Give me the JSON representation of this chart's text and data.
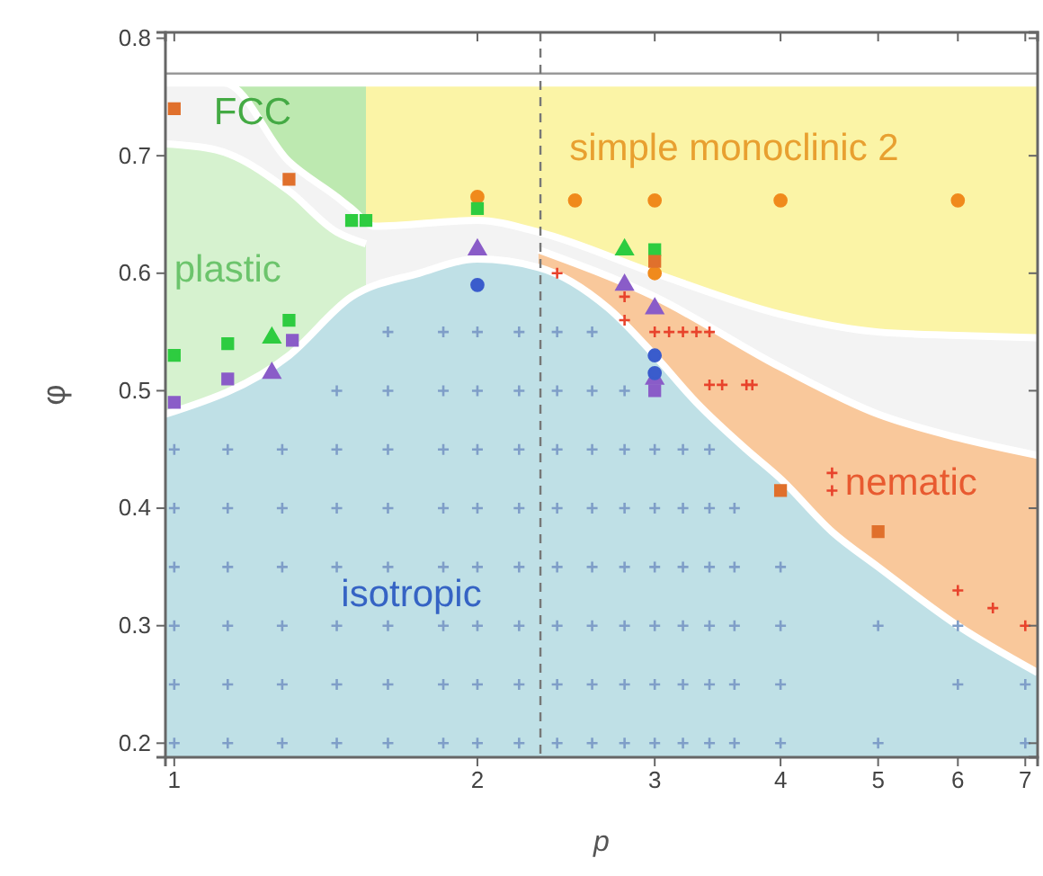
{
  "chart_data": {
    "type": "scatter",
    "xlabel": "p",
    "ylabel": "φ",
    "log": "x",
    "xlim": [
      0.98,
      7.2
    ],
    "xticks": [
      1,
      2,
      3,
      4,
      5,
      6,
      7
    ],
    "ylim": [
      0.188,
      0.805
    ],
    "yticks": [
      0.2,
      0.3,
      0.4,
      0.5,
      0.6,
      0.7,
      0.8
    ],
    "grid": false,
    "series": [
      {
        "type": "area",
        "color": "#fbf4a6",
        "x": [
          1.52,
          7.2
        ],
        "values": [
          0.762,
          0.762
        ]
      },
      {
        "type": "area",
        "color": "#bde9b0",
        "x": [
          1.12,
          1.55
        ],
        "values": [
          0.762,
          0.762
        ]
      },
      {
        "type": "area",
        "color": "#f3f3f3",
        "x": [
          0.98,
          1.12,
          1.3,
          1.45,
          1.5,
          1.58,
          2,
          2.3,
          3,
          4,
          5,
          6,
          7.2
        ],
        "values": [
          0.762,
          0.762,
          0.695,
          0.665,
          0.655,
          0.64,
          0.645,
          0.635,
          0.6,
          0.565,
          0.55,
          0.547,
          0.545
        ]
      },
      {
        "type": "area",
        "color": "#d6f2cf",
        "x": [
          0.98,
          1.1,
          1.3,
          1.45,
          1.55
        ],
        "values": [
          0.71,
          0.705,
          0.67,
          0.635,
          0.625
        ]
      },
      {
        "type": "area",
        "color": "#f9c89b",
        "x": [
          2.3,
          3,
          4,
          5,
          6,
          7.2
        ],
        "values": [
          0.62,
          0.58,
          0.52,
          0.48,
          0.46,
          0.445
        ]
      },
      {
        "type": "area",
        "color": "#bfe0e6",
        "x": [
          0.98,
          1.3,
          1.5,
          1.75,
          2,
          2.3,
          2.7,
          3,
          3.3,
          3.7,
          4,
          4.5,
          5,
          6,
          7.2
        ],
        "values": [
          0.48,
          0.53,
          0.58,
          0.6,
          0.612,
          0.605,
          0.57,
          0.53,
          0.49,
          0.45,
          0.425,
          0.38,
          0.35,
          0.3,
          0.26
        ]
      },
      {
        "marker": "cross",
        "color": "#7f9ec8",
        "x": [
          1,
          1.13,
          1.28,
          1.45,
          1.63,
          1.85,
          2,
          2.2,
          2.4,
          2.6,
          2.8,
          3,
          3.2,
          3.4,
          3.6,
          4,
          5,
          7,
          1,
          1.13,
          1.28,
          1.45,
          1.63,
          1.85,
          2,
          2.2,
          2.4,
          2.6,
          2.8,
          3,
          3.2,
          3.4,
          3.6,
          4,
          6,
          7,
          1,
          1.13,
          1.28,
          1.45,
          1.63,
          1.85,
          2,
          2.2,
          2.4,
          2.6,
          2.8,
          3,
          3.2,
          3.4,
          3.6,
          4,
          5,
          6,
          1,
          1.13,
          1.28,
          1.45,
          1.63,
          1.85,
          2,
          2.2,
          2.4,
          2.6,
          2.8,
          3,
          3.2,
          3.4,
          3.6,
          4,
          1,
          1.13,
          1.28,
          1.45,
          1.63,
          1.85,
          2,
          2.2,
          2.4,
          2.6,
          2.8,
          3,
          3.2,
          3.4,
          3.6,
          1,
          1.13,
          1.28,
          1.45,
          1.63,
          1.85,
          2,
          2.2,
          2.4,
          2.6,
          2.8,
          3,
          3.2,
          3.4,
          1.45,
          1.63,
          1.85,
          2,
          2.2,
          2.4,
          2.6,
          2.8,
          1.63,
          1.85,
          2,
          2.2,
          2.4,
          2.6
        ],
        "values": [
          0.2,
          0.2,
          0.2,
          0.2,
          0.2,
          0.2,
          0.2,
          0.2,
          0.2,
          0.2,
          0.2,
          0.2,
          0.2,
          0.2,
          0.2,
          0.2,
          0.2,
          0.2,
          0.25,
          0.25,
          0.25,
          0.25,
          0.25,
          0.25,
          0.25,
          0.25,
          0.25,
          0.25,
          0.25,
          0.25,
          0.25,
          0.25,
          0.25,
          0.25,
          0.25,
          0.25,
          0.3,
          0.3,
          0.3,
          0.3,
          0.3,
          0.3,
          0.3,
          0.3,
          0.3,
          0.3,
          0.3,
          0.3,
          0.3,
          0.3,
          0.3,
          0.3,
          0.3,
          0.3,
          0.35,
          0.35,
          0.35,
          0.35,
          0.35,
          0.35,
          0.35,
          0.35,
          0.35,
          0.35,
          0.35,
          0.35,
          0.35,
          0.35,
          0.35,
          0.35,
          0.4,
          0.4,
          0.4,
          0.4,
          0.4,
          0.4,
          0.4,
          0.4,
          0.4,
          0.4,
          0.4,
          0.4,
          0.4,
          0.4,
          0.4,
          0.45,
          0.45,
          0.45,
          0.45,
          0.45,
          0.45,
          0.45,
          0.45,
          0.45,
          0.45,
          0.45,
          0.45,
          0.45,
          0.45,
          0.5,
          0.5,
          0.5,
          0.5,
          0.5,
          0.5,
          0.5,
          0.5,
          0.55,
          0.55,
          0.55,
          0.55,
          0.55,
          0.55
        ]
      },
      {
        "marker": "circle",
        "color": "#f08a1c",
        "x": [
          2,
          2.5,
          3,
          4,
          6,
          3
        ],
        "values": [
          0.665,
          0.662,
          0.662,
          0.662,
          0.662,
          0.6
        ]
      },
      {
        "marker": "square",
        "color": "#2ecc40",
        "x": [
          1,
          1.13,
          1.3,
          1.5,
          1.55,
          2,
          3
        ],
        "values": [
          0.53,
          0.54,
          0.56,
          0.645,
          0.645,
          0.655,
          0.62
        ]
      },
      {
        "marker": "triangle",
        "color": "#2ecc40",
        "x": [
          1.25,
          2.8
        ],
        "values": [
          0.545,
          0.62
        ]
      },
      {
        "marker": "square",
        "color": "#e0702c",
        "x": [
          1,
          1.3,
          3,
          4,
          5
        ],
        "values": [
          0.74,
          0.68,
          0.61,
          0.415,
          0.38
        ]
      },
      {
        "marker": "triangle",
        "color": "#8a5cc8",
        "x": [
          1.25,
          2,
          2.8,
          3,
          3
        ],
        "values": [
          0.515,
          0.62,
          0.59,
          0.57,
          0.51
        ]
      },
      {
        "marker": "square",
        "color": "#8a5cc8",
        "x": [
          1,
          1.13,
          1.31,
          3
        ],
        "values": [
          0.49,
          0.51,
          0.543,
          0.5
        ]
      },
      {
        "marker": "circle",
        "color": "#3a5ccc",
        "x": [
          2,
          3,
          3
        ],
        "values": [
          0.59,
          0.53,
          0.515
        ]
      },
      {
        "marker": "cross",
        "color": "#e8432c",
        "x": [
          2.4,
          2.8,
          2.8,
          3,
          3.1,
          3.2,
          3.3,
          3.4,
          3.4,
          3.5,
          3.7,
          3.75,
          4.5,
          4.5,
          6,
          6.5,
          7
        ],
        "values": [
          0.6,
          0.58,
          0.56,
          0.55,
          0.55,
          0.55,
          0.55,
          0.55,
          0.505,
          0.505,
          0.505,
          0.505,
          0.43,
          0.415,
          0.33,
          0.315,
          0.3
        ]
      }
    ],
    "ref_lines": [
      {
        "axis": "y",
        "value": 0.77,
        "color": "#999999",
        "line_style": "solid"
      },
      {
        "axis": "x",
        "value": 2.31,
        "color": "#777777",
        "line_style": "dashed"
      }
    ],
    "annotations": [
      "FCC",
      "plastic",
      "simple monoclinic 2",
      "nematic",
      "isotropic"
    ]
  }
}
